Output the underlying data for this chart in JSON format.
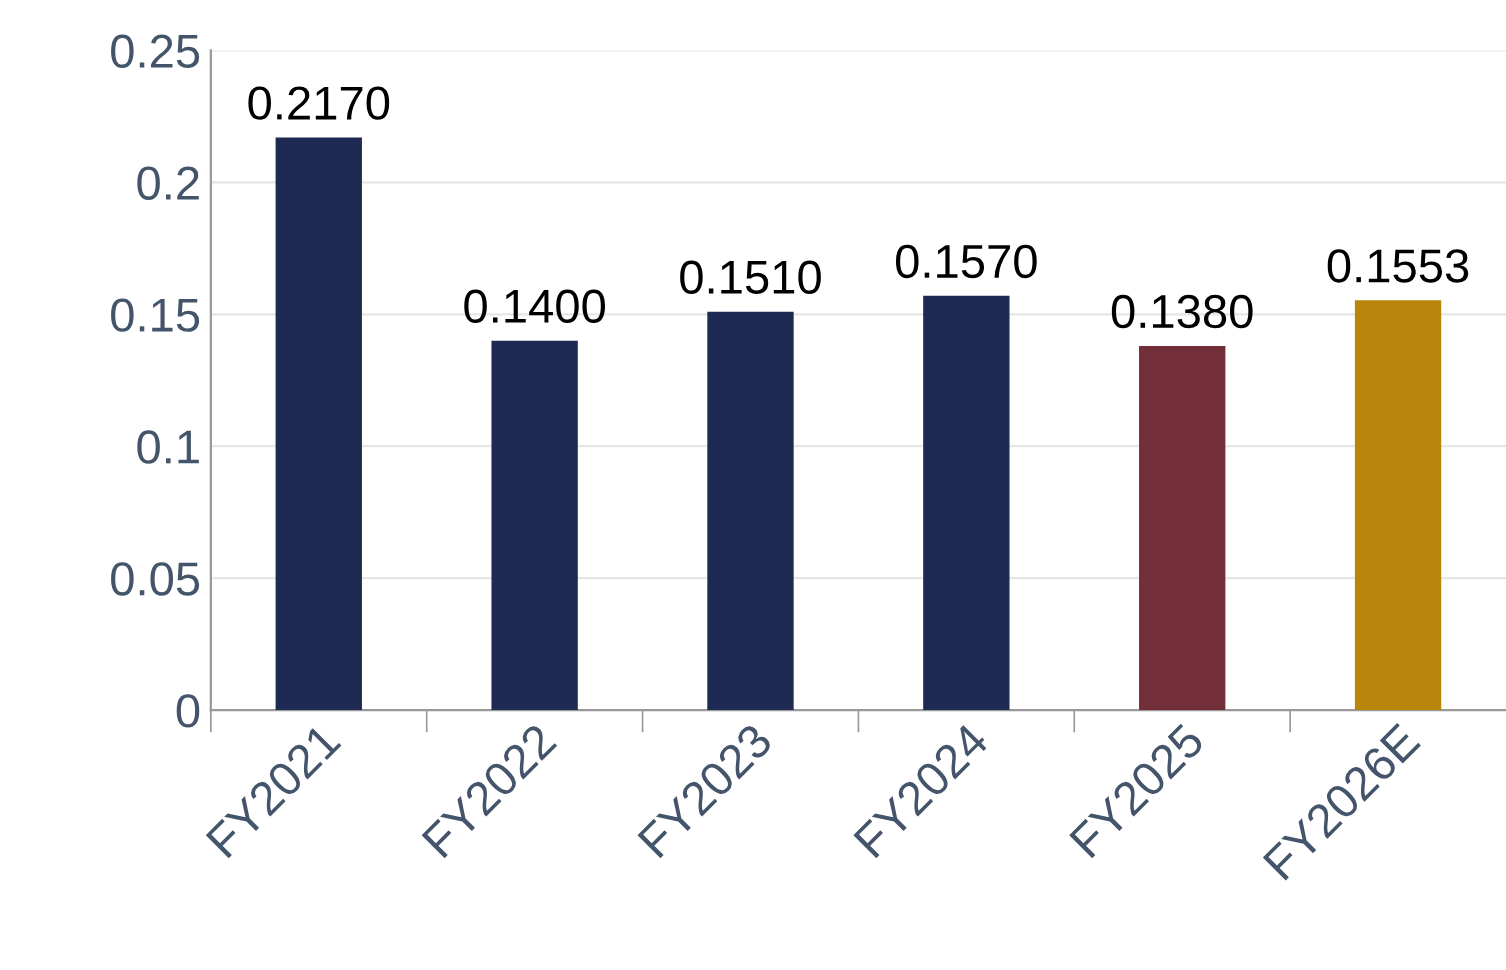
{
  "chart_data": {
    "type": "bar",
    "categories": [
      "FY2021",
      "FY2022",
      "FY2023",
      "FY2024",
      "FY2025",
      "FY2026E"
    ],
    "values": [
      0.217,
      0.14,
      0.151,
      0.157,
      0.138,
      0.1553
    ],
    "colors": [
      "#1f2a52",
      "#1f2a52",
      "#1f2a52",
      "#1f2a52",
      "#722f3a",
      "#b8860b"
    ],
    "value_labels": [
      "0.2170",
      "0.1400",
      "0.1510",
      "0.1570",
      "0.1380",
      "0.1553"
    ],
    "ylim": [
      0,
      0.25
    ],
    "yticks": [
      0,
      0.05,
      0.1,
      0.15,
      0.2,
      0.25
    ],
    "grid": "y",
    "legend": false
  }
}
